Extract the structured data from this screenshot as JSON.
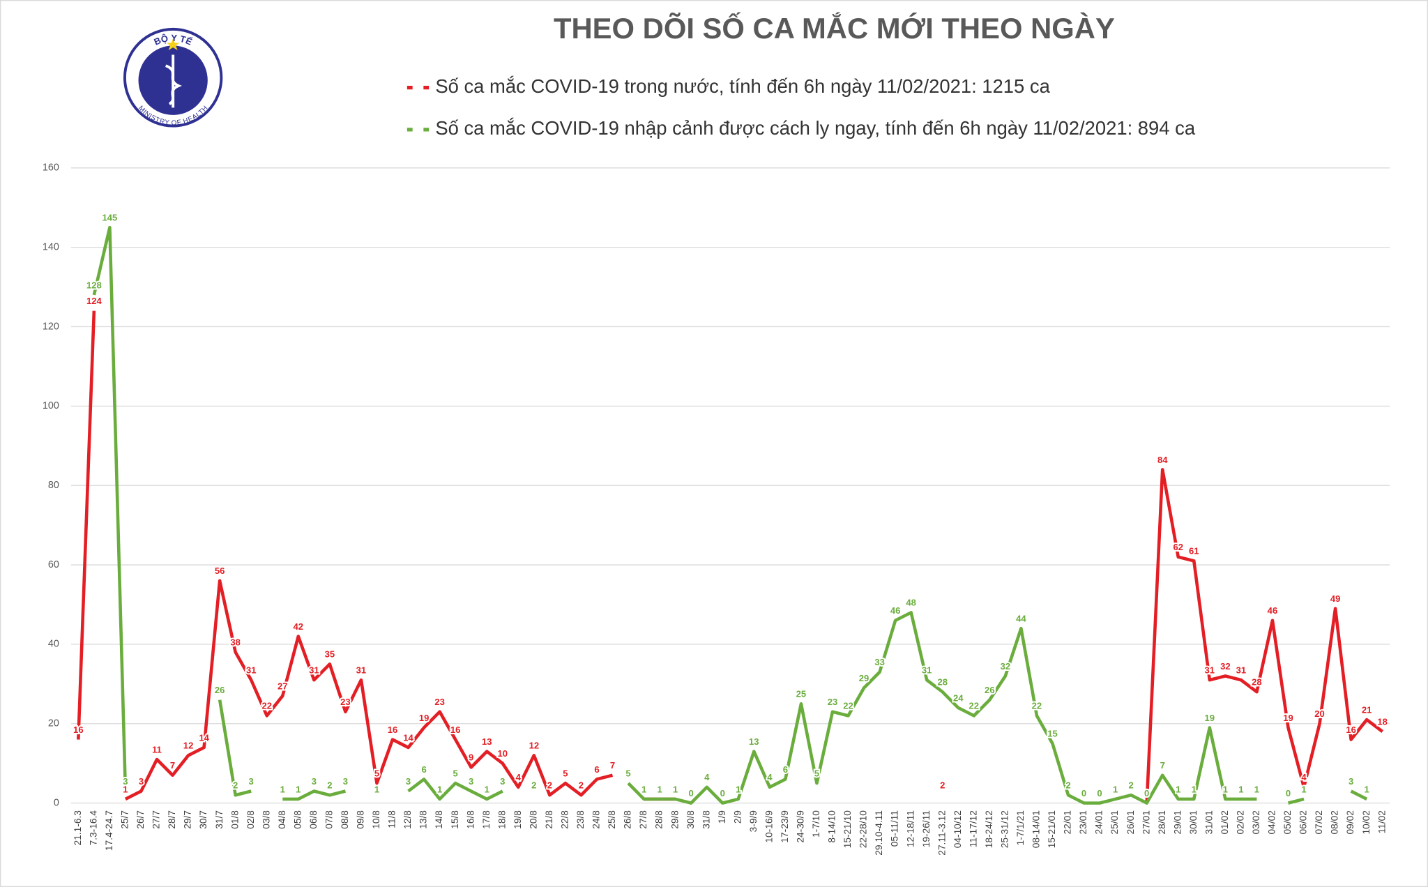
{
  "logo": {
    "top_text": "BỘ Y TẾ",
    "bottom_text": "MINISTRY OF HEALTH"
  },
  "chart_data": {
    "type": "line",
    "title": "THEO DÕI SỐ CA MẮC MỚI THEO NGÀY",
    "categories": [
      "21.1-6.3",
      "7.3-16.4",
      "17.4-24.7",
      "25/7",
      "26/7",
      "27/7",
      "28/7",
      "29/7",
      "30/7",
      "31/7",
      "01/8",
      "02/8",
      "03/8",
      "04/8",
      "05/8",
      "06/8",
      "07/8",
      "08/8",
      "09/8",
      "10/8",
      "11/8",
      "12/8",
      "13/8",
      "14/8",
      "15/8",
      "16/8",
      "17/8",
      "18/8",
      "19/8",
      "20/8",
      "21/8",
      "22/8",
      "23/8",
      "24/8",
      "25/8",
      "26/8",
      "27/8",
      "28/8",
      "29/8",
      "30/8",
      "31/8",
      "1/9",
      "2/9",
      "3-9/9",
      "10-16/9",
      "17-23/9",
      "24-30/9",
      "1-7/10",
      "8-14/10",
      "15-21/10",
      "22-28/10",
      "29.10-4.11",
      "05-11/11",
      "12-18/11",
      "19-26/11",
      "27.11-3.12",
      "04-10/12",
      "11-17/12",
      "18-24/12",
      "25-31/12",
      "1-7/1/21",
      "08-14/01",
      "15-21/01",
      "22/01",
      "23/01",
      "24/01",
      "25/01",
      "26/01",
      "27/01",
      "28/01",
      "29/01",
      "30/01",
      "31/01",
      "01/02",
      "02/02",
      "03/02",
      "04/02",
      "05/02",
      "06/02",
      "07/02",
      "08/02",
      "09/02",
      "10/02",
      "11/02"
    ],
    "series": [
      {
        "name": "Số ca mắc COVID-19 trong nước, tính đến 6h ngày 11/02/2021: 1215 ca",
        "color": "#e31e24",
        "values": [
          16,
          124,
          null,
          1,
          3,
          11,
          7,
          12,
          14,
          56,
          38,
          31,
          22,
          27,
          42,
          31,
          35,
          23,
          31,
          5,
          16,
          14,
          19,
          23,
          16,
          9,
          13,
          10,
          4,
          12,
          2,
          5,
          2,
          6,
          7,
          null,
          1,
          1,
          1,
          null,
          null,
          null,
          1,
          null,
          null,
          null,
          null,
          null,
          null,
          null,
          null,
          null,
          null,
          null,
          null,
          2,
          null,
          null,
          null,
          null,
          null,
          null,
          null,
          null,
          null,
          null,
          null,
          null,
          0,
          84,
          62,
          61,
          31,
          32,
          31,
          28,
          46,
          19,
          4,
          20,
          49,
          16,
          21,
          18
        ]
      },
      {
        "name": "Số ca mắc COVID-19 nhập cảnh được cách ly ngay, tính đến 6h ngày 11/02/2021: 894 ca",
        "color": "#6aad3d",
        "values": [
          null,
          128,
          145,
          3,
          null,
          null,
          null,
          null,
          null,
          26,
          2,
          3,
          null,
          1,
          1,
          3,
          2,
          3,
          null,
          1,
          null,
          3,
          6,
          1,
          5,
          3,
          1,
          3,
          null,
          2,
          null,
          null,
          null,
          null,
          null,
          5,
          1,
          1,
          1,
          0,
          4,
          0,
          1,
          13,
          4,
          6,
          25,
          5,
          23,
          22,
          29,
          33,
          46,
          48,
          31,
          28,
          24,
          22,
          26,
          32,
          44,
          22,
          15,
          2,
          0,
          0,
          1,
          2,
          0,
          7,
          1,
          1,
          19,
          1,
          1,
          1,
          null,
          0,
          1,
          null,
          null,
          3,
          1,
          null
        ]
      }
    ],
    "ylim": [
      0,
      160
    ],
    "yticks": [
      0,
      20,
      40,
      60,
      80,
      100,
      120,
      140,
      160
    ],
    "grid": true
  }
}
